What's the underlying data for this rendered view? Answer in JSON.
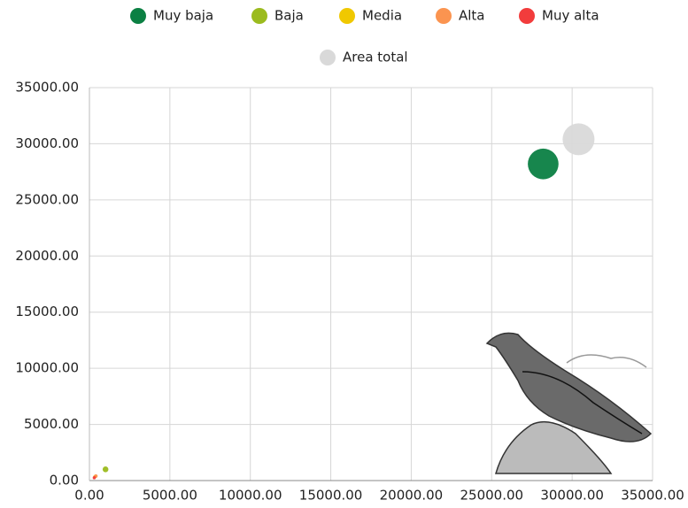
{
  "chart_data": {
    "type": "bubble",
    "series": [
      {
        "name": "Muy baja",
        "color": "#0b8043",
        "x": [
          28200
        ],
        "values": [
          28200
        ],
        "sizes": [
          28200
        ]
      },
      {
        "name": "Baja",
        "color": "#9bbb1e",
        "x": [
          1000
        ],
        "values": [
          1000
        ],
        "sizes": [
          1000
        ]
      },
      {
        "name": "Media",
        "color": "#f0c800",
        "x": [
          350
        ],
        "values": [
          350
        ],
        "sizes": [
          350
        ]
      },
      {
        "name": "Alta",
        "color": "#fb9450",
        "x": [
          400
        ],
        "values": [
          400
        ],
        "sizes": [
          400
        ]
      },
      {
        "name": "Muy alta",
        "color": "#f23c3c",
        "x": [
          300
        ],
        "values": [
          250
        ],
        "sizes": [
          300
        ]
      },
      {
        "name": "Area total",
        "color": "#d9d9d9",
        "x": [
          30400
        ],
        "values": [
          30400
        ],
        "sizes": [
          30400
        ]
      }
    ],
    "xlim": [
      0,
      35000
    ],
    "ylim": [
      0,
      35000
    ],
    "xticks": [
      {
        "value": 0,
        "label": "0.00"
      },
      {
        "value": 5000,
        "label": "5000.00"
      },
      {
        "value": 10000,
        "label": "10000.00"
      },
      {
        "value": 15000,
        "label": "15000.00"
      },
      {
        "value": 20000,
        "label": "20000.00"
      },
      {
        "value": 25000,
        "label": "25000.00"
      },
      {
        "value": 30000,
        "label": "30000.00"
      },
      {
        "value": 35000,
        "label": "35000.00"
      }
    ],
    "yticks": [
      {
        "value": 0,
        "label": "0.00"
      },
      {
        "value": 5000,
        "label": "5000.00"
      },
      {
        "value": 10000,
        "label": "10000.00"
      },
      {
        "value": 15000,
        "label": "15000.00"
      },
      {
        "value": 20000,
        "label": "20000.00"
      },
      {
        "value": 25000,
        "label": "25000.00"
      },
      {
        "value": 30000,
        "label": "30000.00"
      },
      {
        "value": 35000,
        "label": "35000.00"
      }
    ],
    "grid": true
  }
}
